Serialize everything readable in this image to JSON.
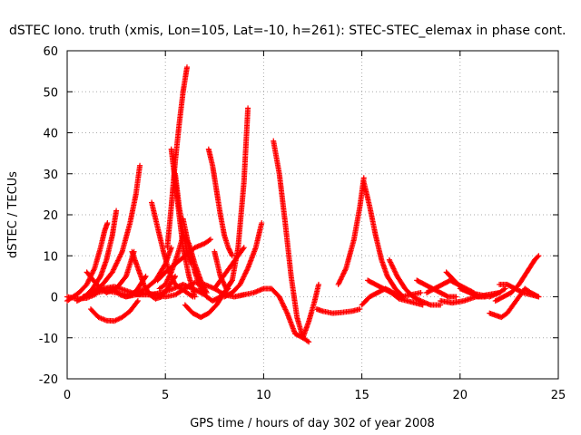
{
  "chart_data": {
    "type": "scatter",
    "title": "dSTEC Iono. truth (xmis, Lon=105, Lat=-10, h=261): STEC-STEC_elemax in phase cont.",
    "xlabel": "GPS time / hours of day 302 of year 2008",
    "ylabel": "dSTEC  / TECUs",
    "xlim": [
      0,
      25
    ],
    "ylim": [
      -20,
      60
    ],
    "xticks": [
      0,
      5,
      10,
      15,
      20,
      25
    ],
    "yticks": [
      -20,
      -10,
      0,
      10,
      20,
      30,
      40,
      50,
      60
    ],
    "grid": true,
    "marker": "+",
    "color": "#ff0000",
    "series": [
      {
        "x": [
          0.0,
          0.3,
          0.6,
          1.0,
          1.4,
          1.7,
          1.9,
          2.05
        ],
        "y": [
          -1,
          0,
          1,
          3,
          7,
          12,
          16,
          18
        ]
      },
      {
        "x": [
          0.5,
          0.9,
          1.3,
          1.7,
          2.0,
          2.3,
          2.5
        ],
        "y": [
          -1,
          0,
          2,
          5,
          9,
          15,
          21
        ]
      },
      {
        "x": [
          0.8,
          1.3,
          1.8,
          2.3,
          2.8,
          3.2,
          3.5,
          3.7
        ],
        "y": [
          0,
          1,
          3,
          6,
          11,
          18,
          25,
          32
        ]
      },
      {
        "x": [
          1.2,
          1.6,
          2.0,
          2.4,
          2.8,
          3.2,
          3.6
        ],
        "y": [
          -3,
          -5,
          -5.8,
          -5.9,
          -5,
          -3.5,
          -1
        ]
      },
      {
        "x": [
          0.0,
          0.6,
          1.0,
          1.4,
          1.8,
          2.4,
          3.0,
          3.6,
          4.2,
          4.8,
          5.4,
          5.9,
          6.4,
          7.0
        ],
        "y": [
          0,
          -0.5,
          -0.3,
          0.5,
          2,
          2.5,
          1.5,
          0.5,
          0.5,
          1,
          2,
          3,
          2,
          0.5
        ]
      },
      {
        "x": [
          1.0,
          1.5,
          2.0,
          2.5,
          3.0,
          3.4
        ],
        "y": [
          6,
          3,
          1,
          2,
          5,
          11
        ]
      },
      {
        "x": [
          1.5,
          2.0,
          2.5,
          3.0,
          3.5,
          4.0,
          4.5,
          5.0,
          5.3
        ],
        "y": [
          1,
          1.5,
          1,
          0.5,
          1,
          2,
          4,
          8,
          12
        ]
      },
      {
        "x": [
          2.3,
          2.7,
          3.0,
          3.3,
          3.6,
          4.0
        ],
        "y": [
          2,
          0.5,
          0,
          0.5,
          2,
          5
        ]
      },
      {
        "x": [
          3.0,
          3.5,
          4.0,
          4.5,
          5.0,
          5.5,
          6.0,
          6.5,
          7.0,
          7.5,
          8.0,
          8.5,
          9.0
        ],
        "y": [
          0,
          0.5,
          1,
          0.5,
          0,
          0.5,
          2,
          3.5,
          3,
          2,
          0.5,
          0,
          0.5
        ]
      },
      {
        "x": [
          3.3,
          3.6,
          3.9,
          4.2,
          4.5,
          4.8,
          5.1,
          5.5
        ],
        "y": [
          11,
          7,
          3,
          0.5,
          -0.5,
          0,
          2,
          5
        ]
      },
      {
        "x": [
          4.3,
          4.6,
          4.9,
          5.2,
          5.5,
          5.8,
          6.1,
          6.4
        ],
        "y": [
          23,
          17,
          11,
          6,
          3,
          2,
          1,
          0
        ]
      },
      {
        "x": [
          5.1,
          5.3,
          5.5,
          5.7,
          5.9,
          6.1
        ],
        "y": [
          12,
          22,
          33,
          42,
          50,
          56
        ]
      },
      {
        "x": [
          5.3,
          5.5,
          5.7,
          5.9,
          6.2,
          6.5
        ],
        "y": [
          36,
          28,
          20,
          12,
          5,
          0
        ]
      },
      {
        "x": [
          5.5,
          5.7,
          5.9,
          6.1,
          6.3
        ],
        "y": [
          30,
          22,
          16,
          11,
          8
        ]
      },
      {
        "x": [
          4.7,
          5.0,
          5.3,
          5.6,
          5.9,
          6.2,
          6.5,
          6.8,
          7.1
        ],
        "y": [
          2,
          3,
          6,
          10,
          15,
          13,
          8,
          4,
          1
        ]
      },
      {
        "x": [
          5.9,
          6.2,
          6.5,
          6.8,
          7.1,
          7.4,
          7.8,
          8.2
        ],
        "y": [
          19,
          12,
          6,
          2,
          0,
          -1,
          0,
          2
        ]
      },
      {
        "x": [
          6.0,
          6.4,
          6.8,
          7.2,
          7.6,
          8.0,
          8.4
        ],
        "y": [
          -2,
          -4,
          -5,
          -4,
          -2,
          1,
          4
        ]
      },
      {
        "x": [
          4.6,
          5.0,
          5.5,
          6.0,
          6.5,
          7.0,
          7.3
        ],
        "y": [
          4,
          6,
          8,
          10,
          12,
          13,
          14
        ]
      },
      {
        "x": [
          7.2,
          7.4,
          7.6,
          7.8,
          8.0,
          8.2,
          8.4
        ],
        "y": [
          36,
          32,
          26,
          20,
          15,
          12,
          10
        ]
      },
      {
        "x": [
          7.5,
          7.8,
          8.1,
          8.4,
          8.7,
          9.0,
          9.2
        ],
        "y": [
          11,
          5,
          2,
          4,
          12,
          28,
          46
        ]
      },
      {
        "x": [
          7.5,
          7.8,
          8.1,
          8.4,
          8.7,
          9.0
        ],
        "y": [
          2,
          4,
          6,
          8,
          10,
          12
        ]
      },
      {
        "x": [
          8.0,
          8.4,
          8.8,
          9.2,
          9.6,
          9.9
        ],
        "y": [
          0,
          1,
          3,
          7,
          12,
          18
        ]
      },
      {
        "x": [
          8.5,
          9.0,
          9.5,
          10.0,
          10.4,
          10.8,
          11.2,
          11.6,
          12.0,
          12.3,
          12.6,
          12.8
        ],
        "y": [
          0,
          0.5,
          1,
          2,
          2,
          0,
          -4,
          -9,
          -10,
          -6,
          -1,
          3
        ]
      },
      {
        "x": [
          10.5,
          10.8,
          11.1,
          11.4,
          11.7,
          12.0,
          12.3
        ],
        "y": [
          38,
          30,
          18,
          5,
          -5,
          -10,
          -11
        ]
      },
      {
        "x": [
          12.7,
          13.0,
          13.5,
          14.0,
          14.5,
          14.9
        ],
        "y": [
          -3,
          -3.5,
          -4,
          -3.8,
          -3.5,
          -3
        ]
      },
      {
        "x": [
          13.8,
          14.2,
          14.6,
          14.9,
          15.1
        ],
        "y": [
          3,
          7,
          14,
          22,
          29
        ]
      },
      {
        "x": [
          15.1,
          15.4,
          15.7,
          16.0,
          16.3,
          16.7,
          17.1
        ],
        "y": [
          28,
          22,
          15,
          9,
          5,
          2,
          0
        ]
      },
      {
        "x": [
          15.0,
          15.4,
          15.8,
          16.2,
          16.6,
          17.0,
          17.5,
          18.0
        ],
        "y": [
          -2,
          0,
          1,
          2,
          1,
          0,
          0.5,
          1
        ]
      },
      {
        "x": [
          15.3,
          15.7,
          16.1,
          16.5,
          16.9,
          17.3,
          17.7,
          18.1
        ],
        "y": [
          4,
          3,
          2,
          1,
          -0.5,
          -1,
          -1.5,
          -2
        ]
      },
      {
        "x": [
          16.4,
          16.8,
          17.2,
          17.6,
          18.0,
          18.5,
          19.0
        ],
        "y": [
          9,
          5,
          2,
          0,
          -1,
          -2,
          -2
        ]
      },
      {
        "x": [
          17.8,
          18.2,
          18.6,
          19.0,
          19.4,
          19.8
        ],
        "y": [
          4,
          3,
          2,
          1,
          0,
          0
        ]
      },
      {
        "x": [
          18.3,
          18.7,
          19.1,
          19.5,
          19.9,
          20.3,
          20.7
        ],
        "y": [
          1,
          2,
          3,
          4,
          3,
          2,
          1
        ]
      },
      {
        "x": [
          19.3,
          19.7,
          20.1,
          20.5,
          20.9,
          21.3
        ],
        "y": [
          6,
          4,
          2,
          1,
          0,
          0
        ]
      },
      {
        "x": [
          19.0,
          19.6,
          20.2,
          20.8,
          21.4,
          22.0
        ],
        "y": [
          -1,
          -1.5,
          -1,
          0,
          0.5,
          1
        ]
      },
      {
        "x": [
          20.0,
          20.5,
          21.0,
          21.5,
          22.0,
          22.3
        ],
        "y": [
          2,
          1,
          0.5,
          0,
          1,
          2
        ]
      },
      {
        "x": [
          21.5,
          21.8,
          22.1,
          22.4,
          22.7,
          23.0,
          23.3,
          23.6,
          24.0
        ],
        "y": [
          -4,
          -4.5,
          -5,
          -4,
          -2,
          0,
          2,
          1,
          0
        ]
      },
      {
        "x": [
          21.8,
          22.2,
          22.6,
          23.0,
          23.4,
          23.8,
          24.0
        ],
        "y": [
          -1,
          0,
          1,
          3,
          6,
          9,
          10
        ]
      },
      {
        "x": [
          22.0,
          22.4,
          22.8,
          23.2,
          23.6,
          24.0
        ],
        "y": [
          3,
          3,
          2,
          1,
          0.5,
          0
        ]
      }
    ]
  }
}
